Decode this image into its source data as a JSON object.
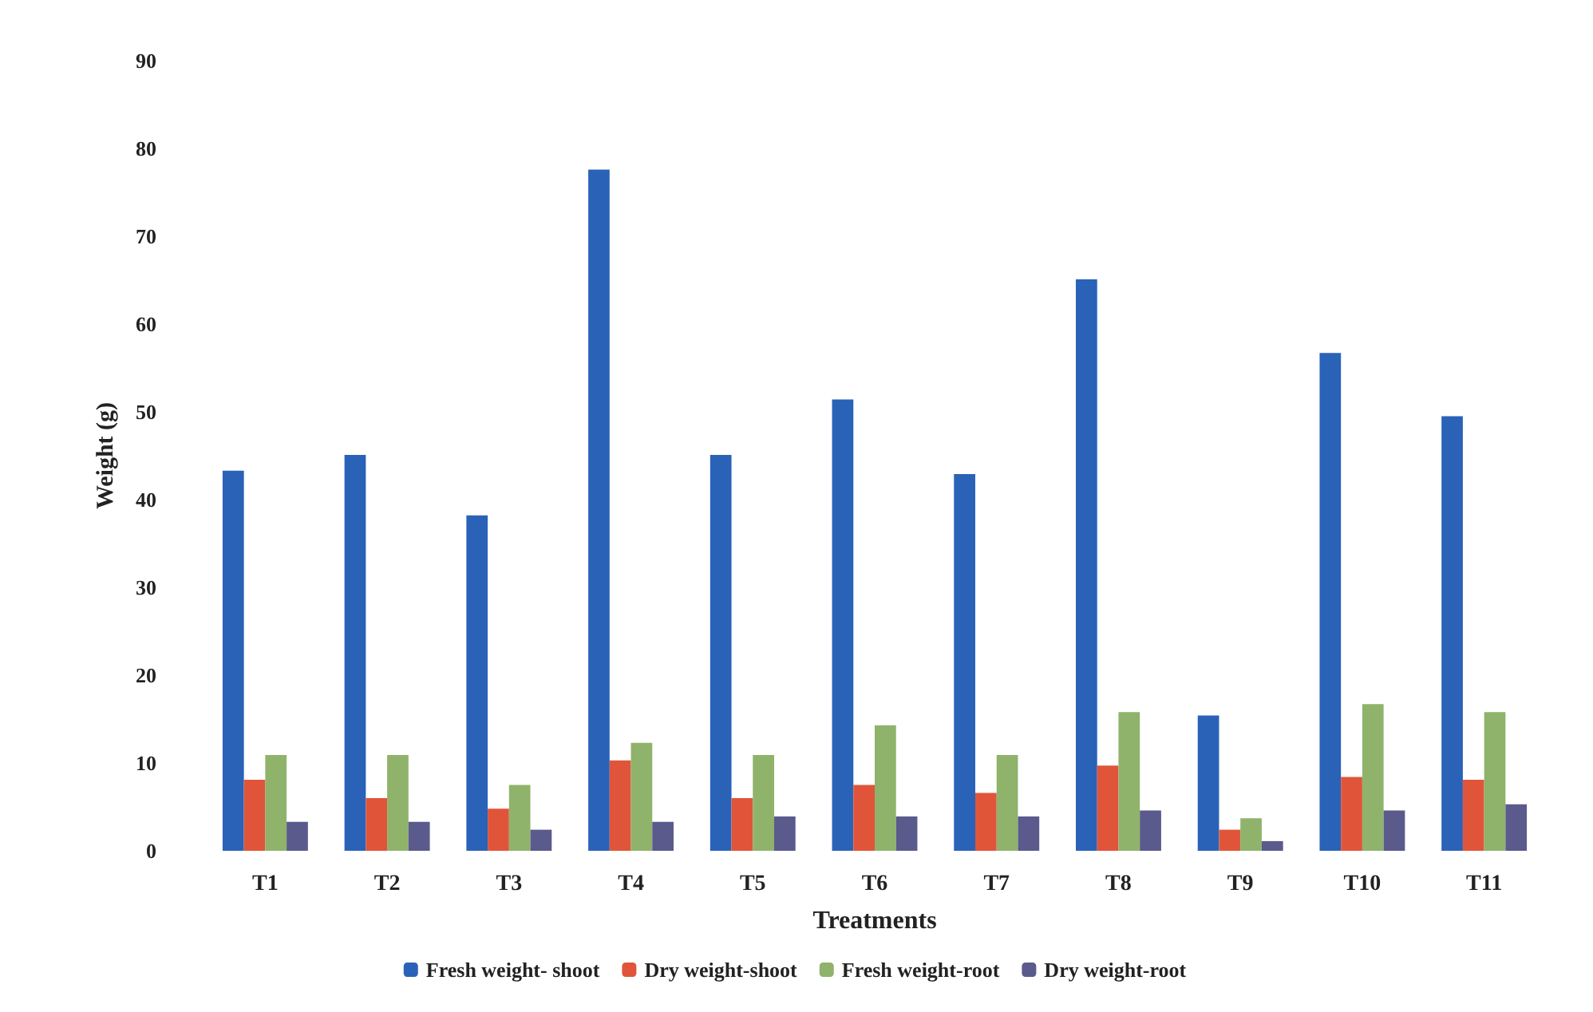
{
  "chart_data": {
    "type": "bar",
    "xlabel": "Treatments",
    "ylabel": "Weight (g)",
    "categories": [
      "T1",
      "T2",
      "T3",
      "T4",
      "T5",
      "T6",
      "T7",
      "T8",
      "T9",
      "T10",
      "T11"
    ],
    "series": [
      {
        "name": "Fresh weight- shoot",
        "color": "#2a62b8",
        "values": [
          43.3,
          45.1,
          38.2,
          77.6,
          45.1,
          51.4,
          42.9,
          65.1,
          15.4,
          56.7,
          49.5
        ]
      },
      {
        "name": "Dry weight-shoot",
        "color": "#e0553a",
        "values": [
          8.1,
          6.0,
          4.8,
          10.3,
          6.0,
          7.5,
          6.6,
          9.7,
          2.4,
          8.4,
          8.1
        ]
      },
      {
        "name": "Fresh weight-root",
        "color": "#8fb36a",
        "values": [
          10.9,
          10.9,
          7.5,
          12.3,
          10.9,
          14.3,
          10.9,
          15.8,
          3.7,
          16.7,
          15.8
        ]
      },
      {
        "name": "Dry weight-root",
        "color": "#5a5a8c",
        "values": [
          3.3,
          3.3,
          2.4,
          3.3,
          3.9,
          3.9,
          3.9,
          4.6,
          1.1,
          4.6,
          5.3
        ]
      }
    ],
    "ylim": [
      0,
      90
    ],
    "yticks": [
      0,
      10,
      20,
      30,
      40,
      50,
      60,
      70,
      80,
      90
    ],
    "grid": false,
    "legend": "bottom"
  }
}
